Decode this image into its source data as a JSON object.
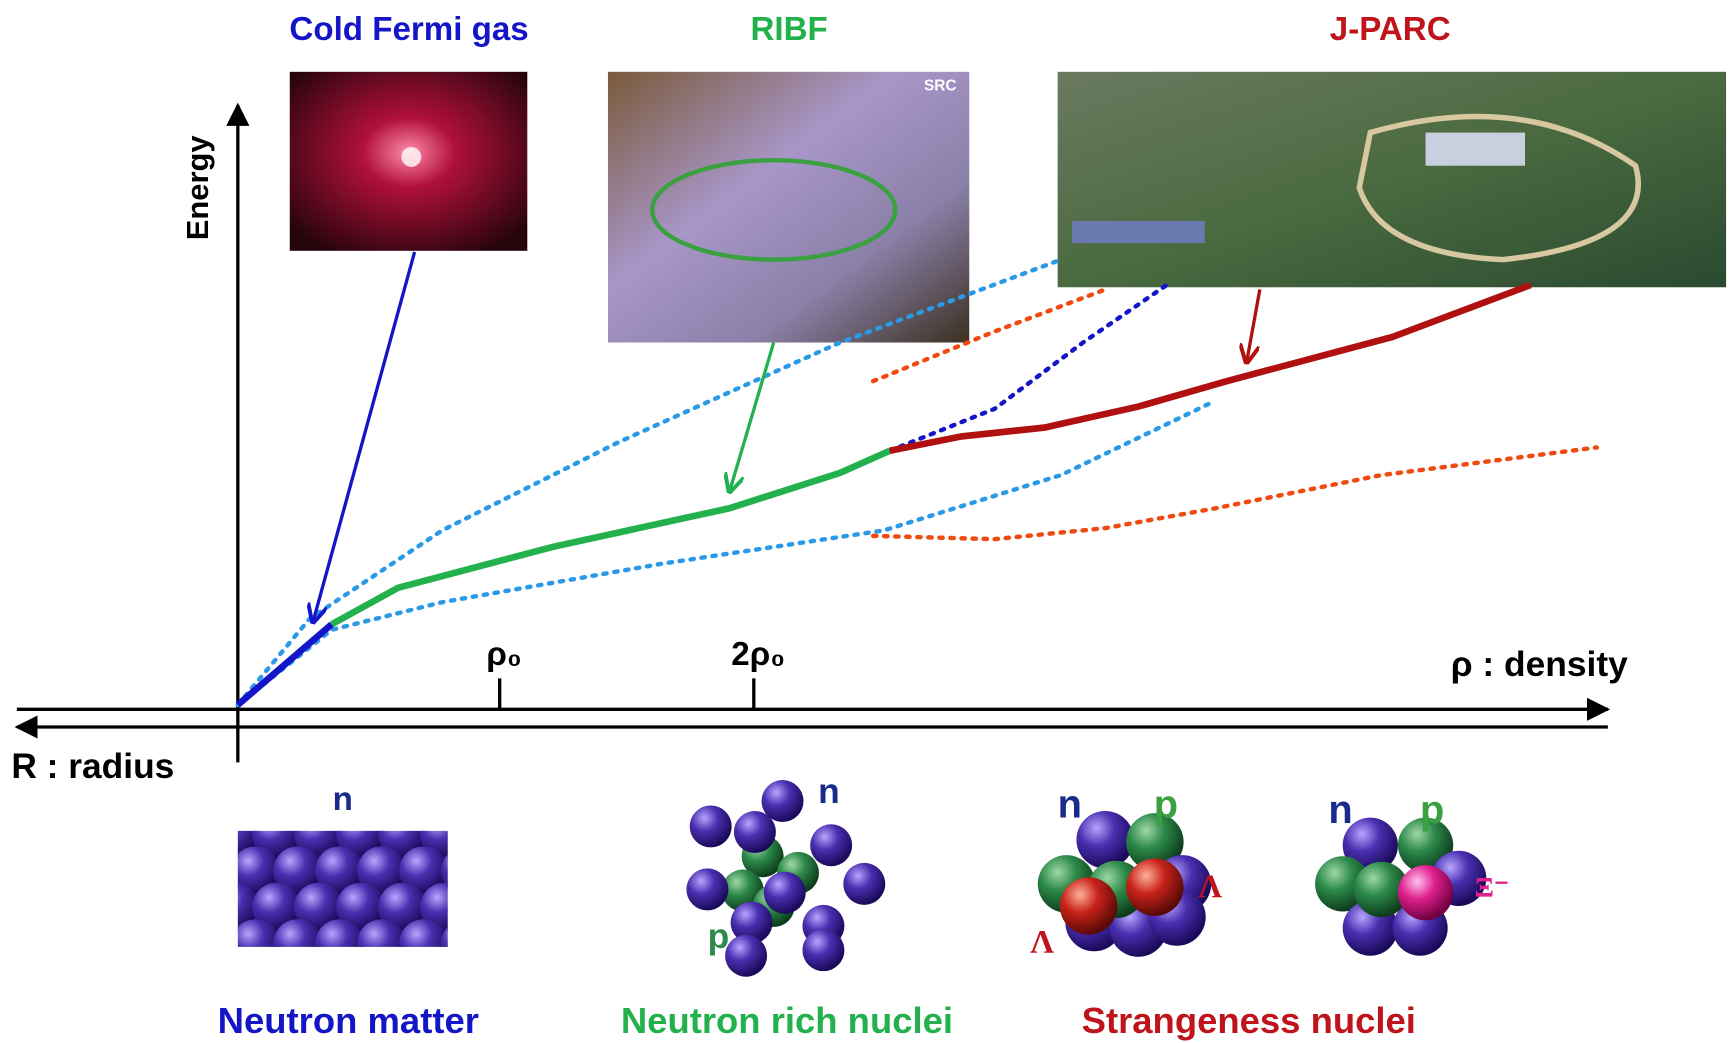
{
  "facilities": [
    {
      "label": "Cold Fermi gas"
    },
    {
      "label": "RIBF",
      "photo_caption": "SRC"
    },
    {
      "label": "J-PARC"
    }
  ],
  "axes": {
    "y_label": "Energy",
    "x_label": "ρ : density",
    "r_label": "R : radius",
    "ticks": [
      "ρ₀",
      "2ρ₀"
    ]
  },
  "nuclei": [
    {
      "title": "Neutron matter",
      "labels": [
        "n"
      ]
    },
    {
      "title": "Neutron rich nuclei",
      "labels": [
        "n",
        "p"
      ]
    },
    {
      "title": "Strangeness nuclei",
      "labels": [
        "n",
        "p",
        "Λ",
        "Λ"
      ]
    },
    {
      "labels": [
        "n",
        "p",
        "Ξ⁻"
      ]
    }
  ]
}
